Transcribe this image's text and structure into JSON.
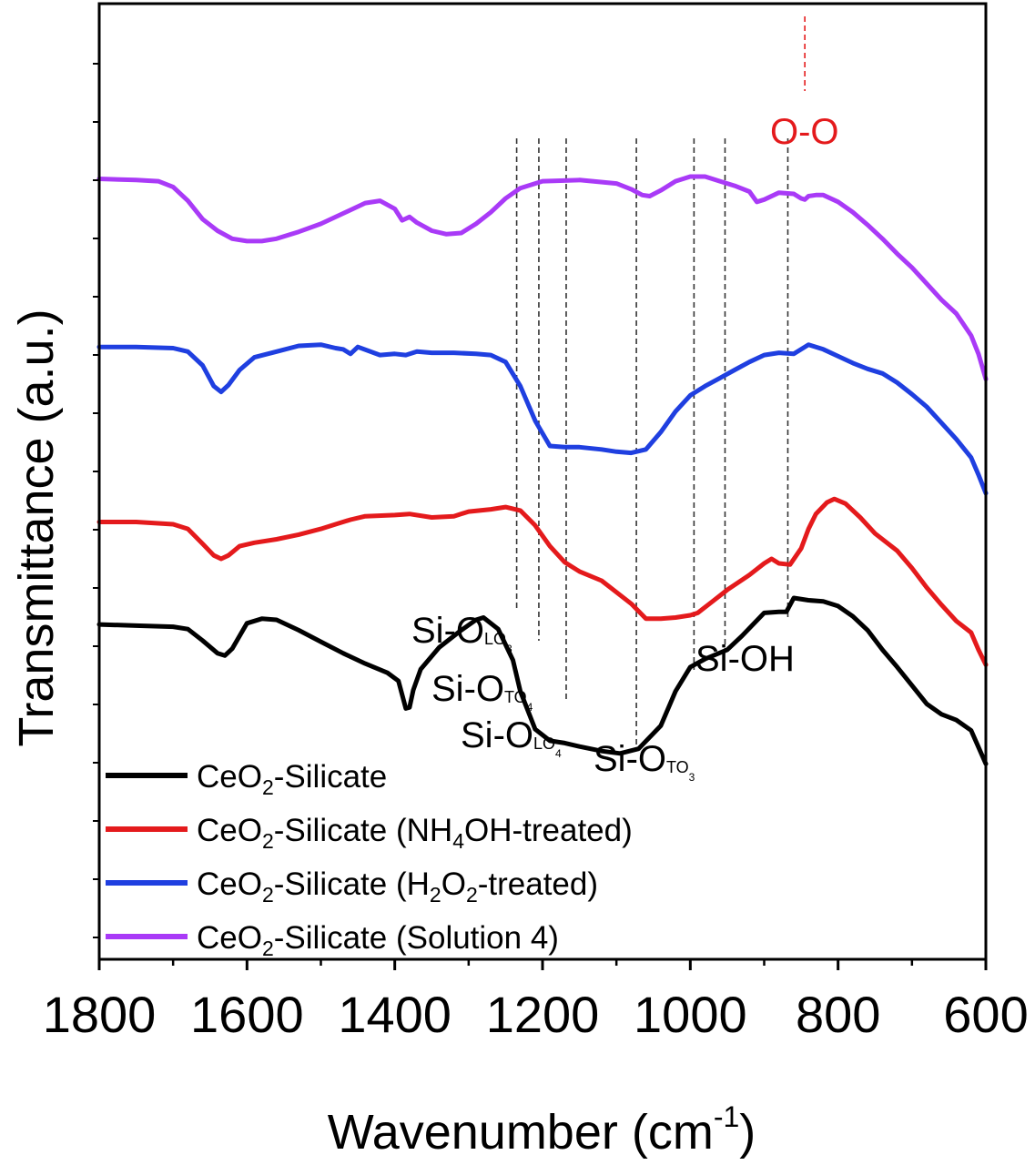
{
  "chart_data": {
    "type": "line",
    "xlabel": "Wavenumber (cm",
    "xlabel_sup": "-1",
    "xlabel_tail": ")",
    "ylabel": "Transmittance (a.u.)",
    "xlim": [
      1800,
      600
    ],
    "x_ticks": [
      "1800",
      "1600",
      "1400",
      "1200",
      "1000",
      "800",
      "600"
    ],
    "y_ticks_labeled": false,
    "series": [
      {
        "name": "CeO2-Silicate",
        "color": "#000000",
        "x": [
          1800,
          1750,
          1700,
          1680,
          1660,
          1640,
          1630,
          1620,
          1600,
          1580,
          1560,
          1530,
          1500,
          1470,
          1440,
          1410,
          1395,
          1385,
          1380,
          1375,
          1365,
          1340,
          1310,
          1290,
          1280,
          1260,
          1240,
          1230,
          1210,
          1190,
          1170,
          1150,
          1120,
          1095,
          1070,
          1040,
          1020,
          1000,
          980,
          950,
          930,
          900,
          880,
          870,
          860,
          840,
          820,
          800,
          780,
          760,
          740,
          720,
          700,
          680,
          660,
          640,
          620,
          600
        ],
        "y": [
          3.77,
          3.76,
          3.75,
          3.73,
          3.63,
          3.52,
          3.5,
          3.56,
          3.78,
          3.82,
          3.81,
          3.72,
          3.62,
          3.52,
          3.43,
          3.35,
          3.28,
          3.04,
          3.05,
          3.2,
          3.38,
          3.57,
          3.72,
          3.81,
          3.83,
          3.73,
          3.46,
          3.19,
          2.86,
          2.76,
          2.74,
          2.71,
          2.67,
          2.65,
          2.69,
          2.89,
          3.19,
          3.4,
          3.47,
          3.55,
          3.67,
          3.87,
          3.88,
          3.88,
          4.0,
          3.98,
          3.97,
          3.93,
          3.84,
          3.72,
          3.55,
          3.4,
          3.24,
          3.08,
          2.99,
          2.94,
          2.85,
          2.56
        ]
      },
      {
        "name": "CeO2-Silicate (NH4OH-treated)",
        "color": "#e41a1c",
        "x": [
          1800,
          1750,
          1700,
          1680,
          1660,
          1645,
          1635,
          1625,
          1610,
          1590,
          1560,
          1530,
          1500,
          1480,
          1460,
          1440,
          1400,
          1380,
          1350,
          1320,
          1300,
          1270,
          1250,
          1230,
          1210,
          1190,
          1170,
          1150,
          1120,
          1100,
          1080,
          1060,
          1040,
          1020,
          1000,
          990,
          970,
          950,
          920,
          900,
          890,
          880,
          865,
          850,
          840,
          830,
          815,
          805,
          790,
          770,
          750,
          720,
          700,
          680,
          660,
          640,
          620,
          610,
          600
        ],
        "y": [
          4.66,
          4.66,
          4.64,
          4.6,
          4.47,
          4.37,
          4.34,
          4.37,
          4.45,
          4.48,
          4.51,
          4.55,
          4.6,
          4.64,
          4.68,
          4.71,
          4.72,
          4.73,
          4.7,
          4.71,
          4.75,
          4.77,
          4.79,
          4.76,
          4.63,
          4.45,
          4.31,
          4.23,
          4.15,
          4.05,
          3.95,
          3.82,
          3.82,
          3.83,
          3.85,
          3.87,
          3.97,
          4.07,
          4.2,
          4.3,
          4.34,
          4.3,
          4.29,
          4.43,
          4.6,
          4.73,
          4.83,
          4.86,
          4.82,
          4.7,
          4.56,
          4.41,
          4.26,
          4.09,
          3.94,
          3.8,
          3.7,
          3.55,
          3.42
        ]
      },
      {
        "name": "CeO2-Silicate (H2O2-treated)",
        "color": "#1f3fe0",
        "x": [
          1800,
          1750,
          1700,
          1680,
          1660,
          1645,
          1635,
          1625,
          1610,
          1590,
          1560,
          1530,
          1500,
          1480,
          1470,
          1460,
          1450,
          1420,
          1400,
          1385,
          1370,
          1350,
          1320,
          1290,
          1270,
          1250,
          1230,
          1210,
          1190,
          1170,
          1150,
          1120,
          1100,
          1080,
          1060,
          1040,
          1020,
          1000,
          980,
          960,
          940,
          920,
          900,
          880,
          860,
          840,
          820,
          800,
          780,
          760,
          740,
          720,
          700,
          680,
          660,
          640,
          620,
          610,
          600
        ],
        "y": [
          6.18,
          6.18,
          6.17,
          6.14,
          6.02,
          5.84,
          5.79,
          5.85,
          5.98,
          6.09,
          6.14,
          6.19,
          6.2,
          6.17,
          6.16,
          6.12,
          6.18,
          6.11,
          6.12,
          6.11,
          6.14,
          6.13,
          6.13,
          6.12,
          6.11,
          6.05,
          5.84,
          5.54,
          5.32,
          5.31,
          5.31,
          5.29,
          5.27,
          5.26,
          5.29,
          5.44,
          5.62,
          5.76,
          5.84,
          5.91,
          5.98,
          6.05,
          6.11,
          6.13,
          6.12,
          6.2,
          6.16,
          6.1,
          6.04,
          5.99,
          5.95,
          5.87,
          5.77,
          5.66,
          5.52,
          5.38,
          5.22,
          5.07,
          4.91
        ]
      },
      {
        "name": "CeO2-Silicate (Solution 4)",
        "color": "#a93af7",
        "x": [
          1800,
          1750,
          1720,
          1700,
          1680,
          1660,
          1640,
          1620,
          1600,
          1580,
          1560,
          1530,
          1500,
          1470,
          1440,
          1420,
          1400,
          1390,
          1380,
          1370,
          1350,
          1330,
          1310,
          1290,
          1270,
          1250,
          1230,
          1200,
          1150,
          1100,
          1080,
          1065,
          1055,
          1040,
          1020,
          1000,
          980,
          960,
          940,
          920,
          910,
          900,
          880,
          860,
          850,
          845,
          840,
          830,
          820,
          800,
          780,
          760,
          740,
          720,
          700,
          680,
          660,
          640,
          620,
          610,
          600
        ],
        "y": [
          7.64,
          7.63,
          7.62,
          7.57,
          7.45,
          7.29,
          7.19,
          7.12,
          7.1,
          7.1,
          7.12,
          7.18,
          7.25,
          7.34,
          7.43,
          7.45,
          7.38,
          7.28,
          7.31,
          7.26,
          7.19,
          7.16,
          7.17,
          7.25,
          7.35,
          7.47,
          7.56,
          7.62,
          7.63,
          7.6,
          7.55,
          7.5,
          7.49,
          7.54,
          7.62,
          7.66,
          7.66,
          7.62,
          7.58,
          7.53,
          7.44,
          7.46,
          7.52,
          7.51,
          7.47,
          7.46,
          7.49,
          7.5,
          7.5,
          7.44,
          7.35,
          7.24,
          7.12,
          6.99,
          6.87,
          6.73,
          6.59,
          6.47,
          6.28,
          6.12,
          5.9
        ]
      }
    ],
    "reference_lines": [
      {
        "x": 1235,
        "style": "dashed",
        "color": "#333333"
      },
      {
        "x": 1205,
        "style": "dashed",
        "color": "#333333"
      },
      {
        "x": 1168,
        "style": "dashed",
        "color": "#333333"
      },
      {
        "x": 1073,
        "style": "dashed",
        "color": "#333333"
      },
      {
        "x": 995,
        "style": "dashed",
        "color": "#333333"
      },
      {
        "x": 953,
        "style": "dashed",
        "color": "#333333"
      },
      {
        "x": 868,
        "style": "dashed",
        "color": "#333333"
      },
      {
        "x": 845,
        "style": "dashed",
        "color": "#e41a1c"
      }
    ],
    "annotations": [
      {
        "name": "annotation-si-o-lo3",
        "main": "Si-O",
        "sub": "LO",
        "subsub": "3",
        "color": "#000000"
      },
      {
        "name": "annotation-si-o-to4",
        "main": "Si-O",
        "sub": "TO",
        "subsub": "4",
        "color": "#000000"
      },
      {
        "name": "annotation-si-o-lo4",
        "main": "Si-O",
        "sub": "LO",
        "subsub": "4",
        "color": "#000000"
      },
      {
        "name": "annotation-si-o-to3",
        "main": "Si-O",
        "sub": "TO",
        "subsub": "3",
        "color": "#000000"
      },
      {
        "name": "annotation-si-oh",
        "main": "Si-OH",
        "sub": "",
        "subsub": "",
        "color": "#000000"
      },
      {
        "name": "annotation-o-o",
        "main": "O-O",
        "sub": "",
        "subsub": "",
        "color": "#e41a1c"
      }
    ],
    "legend": {
      "placement": "bottom-left",
      "entries": [
        {
          "parts": [
            {
              "t": "CeO"
            },
            {
              "t": "2",
              "sub": true
            },
            {
              "t": "-Silicate"
            }
          ]
        },
        {
          "parts": [
            {
              "t": "CeO"
            },
            {
              "t": "2",
              "sub": true
            },
            {
              "t": "-Silicate (NH"
            },
            {
              "t": "4",
              "sub": true
            },
            {
              "t": "OH-treated)"
            }
          ]
        },
        {
          "parts": [
            {
              "t": "CeO"
            },
            {
              "t": "2",
              "sub": true
            },
            {
              "t": "-Silicate (H"
            },
            {
              "t": "2",
              "sub": true
            },
            {
              "t": "O"
            },
            {
              "t": "2",
              "sub": true
            },
            {
              "t": "-treated)"
            }
          ]
        },
        {
          "parts": [
            {
              "t": "CeO"
            },
            {
              "t": "2",
              "sub": true
            },
            {
              "t": "-Silicate (Solution 4)"
            }
          ]
        }
      ]
    }
  }
}
